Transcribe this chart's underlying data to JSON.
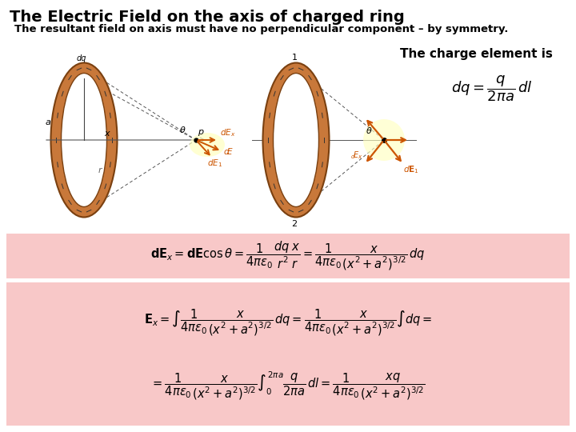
{
  "title": "The Electric Field on the axis of charged ring",
  "subtitle": "The resultant field on axis must have no perpendicular component – by symmetry.",
  "charge_element_text": "The charge element is",
  "formula1": "$\\mathbf{dE}_{x} = \\mathbf{dE}\\cos\\theta = \\dfrac{1}{4\\pi\\varepsilon_0}\\dfrac{dq\\;x}{r^2\\;r} = \\dfrac{1}{4\\pi\\varepsilon_0}\\dfrac{x}{(x^2+a^2)^{3/2}}\\,dq$",
  "formula2": "$\\mathbf{E}_{x} = \\int\\dfrac{1}{4\\pi\\varepsilon_0}\\dfrac{x}{(x^2+a^2)^{3/2}}\\,dq = \\dfrac{1}{4\\pi\\varepsilon_0}\\dfrac{x}{(x^2+a^2)^{3/2}}\\int dq = $",
  "formula3": "$= \\dfrac{1}{4\\pi\\varepsilon_0}\\dfrac{x}{(x^2+a^2)^{3/2}}\\int_0^{2\\pi a}\\dfrac{q}{2\\pi a}\\,dl = \\dfrac{1}{4\\pi\\varepsilon_0}\\dfrac{xq}{(x^2+a^2)^{3/2}}$",
  "bg_color": "#ffffff",
  "pink_color": "#f8c8c8",
  "ring_color": "#c8783a",
  "ring_edge": "#7a4010",
  "arrow_color": "#cc5500",
  "title_color": "#000000"
}
